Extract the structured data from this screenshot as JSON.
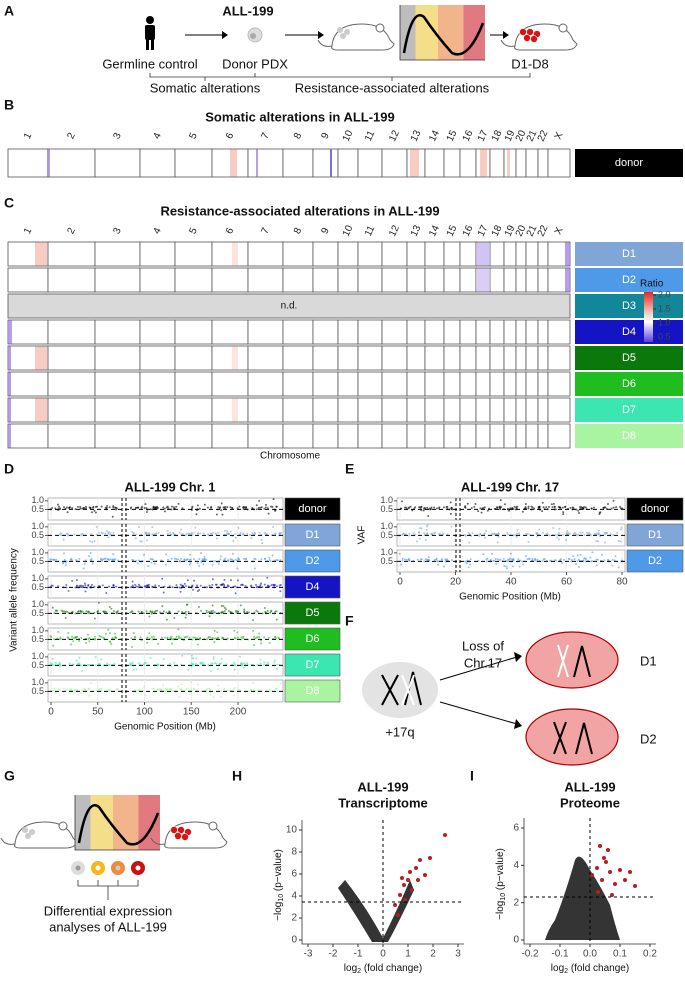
{
  "panel_labels": [
    "A",
    "B",
    "C",
    "D",
    "E",
    "F",
    "G",
    "H",
    "I"
  ],
  "panel_a": {
    "title": "ALL-199",
    "germline": "Germline control",
    "donor": "Donor PDX",
    "derived": "D1-D8",
    "somatic": "Somatic alterations",
    "resistance": "Resistance-associated alterations"
  },
  "panel_b": {
    "title": "Somatic alterations in ALL-199",
    "chromosomes": [
      "1",
      "2",
      "3",
      "4",
      "5",
      "6",
      "7",
      "8",
      "9",
      "10",
      "11",
      "12",
      "13",
      "14",
      "15",
      "16",
      "17",
      "18",
      "19",
      "20",
      "21",
      "22",
      "X"
    ],
    "sample": "donor",
    "color": "#000000"
  },
  "panel_c": {
    "title": "Resistance-associated alterations in ALL-199",
    "samples": [
      "D1",
      "D2",
      "D3",
      "D4",
      "D5",
      "D6",
      "D7",
      "D8"
    ],
    "colors": [
      "#7fa6d6",
      "#4f9ae8",
      "#12879a",
      "#1414c4",
      "#0b780b",
      "#1fbd1f",
      "#3ce6b0",
      "#a9f4a0"
    ],
    "not_determined": "n.d.",
    "x_label": "Chromosome",
    "legend": {
      "title": "Ratio",
      "ticks": [
        {
          "value": 2,
          "label": "2.0"
        },
        {
          "value": 1.5,
          "label": "1.5"
        },
        {
          "value": 1,
          "label": "1.0"
        },
        {
          "value": 0.5,
          "label": "0.5"
        }
      ]
    }
  },
  "panel_d": {
    "title": "ALL-199 Chr. 1",
    "samples": [
      "donor",
      "D1",
      "D2",
      "D4",
      "D5",
      "D6",
      "D7",
      "D8"
    ],
    "colors": [
      "#000000",
      "#7fa6d6",
      "#4f9ae8",
      "#1414c4",
      "#0b780b",
      "#1fbd1f",
      "#3ce6b0",
      "#a9f4a0"
    ],
    "yticks": [
      {
        "value": 0.5,
        "label": "0.5"
      },
      {
        "value": 1,
        "label": "1.0"
      }
    ],
    "xticks": [
      0,
      50,
      100,
      150,
      200
    ],
    "x_label": "Genomic Position (Mb)",
    "y_label": "Variant allele frequency"
  },
  "panel_e": {
    "title": "ALL-199 Chr. 17",
    "samples": [
      "donor",
      "D1",
      "D2"
    ],
    "colors": [
      "#000000",
      "#7fa6d6",
      "#4f9ae8"
    ],
    "yticks": [
      {
        "value": 0.5,
        "label": "0.5"
      },
      {
        "value": 1,
        "label": "1.0"
      }
    ],
    "xticks": [
      0,
      20,
      40,
      60,
      80
    ],
    "x_label": "Genomic Position (Mb)",
    "y_label": "VAF"
  },
  "panel_f": {
    "loss": [
      "Loss of",
      "Chr.17"
    ],
    "gain": "+17q",
    "clones": [
      "D1",
      "D2"
    ]
  },
  "panel_g": {
    "text": [
      "Differential expression",
      "analyses of ALL-199"
    ]
  },
  "panel_h": {
    "title": [
      "ALL-199",
      "Transcriptome"
    ],
    "yticks": [
      0,
      2,
      4,
      6,
      8,
      10
    ],
    "xticks": [
      -3,
      -2,
      -1,
      0,
      1,
      2,
      3
    ],
    "y_label": [
      "−log",
      "10",
      " (p−value)"
    ],
    "x_label": [
      "log",
      "2",
      " (fold change)"
    ]
  },
  "panel_i": {
    "title": [
      "ALL-199",
      "Proteome"
    ],
    "yticks": [
      0,
      2,
      4,
      6
    ],
    "xticks": [
      -0.2,
      -0.1,
      {
        "value": 0,
        "label": "0.0"
      },
      0.1,
      0.2
    ],
    "y_label": [
      "−log",
      "10",
      " (p−value)"
    ],
    "x_label": [
      "log",
      "2",
      " (fold change)"
    ]
  }
}
